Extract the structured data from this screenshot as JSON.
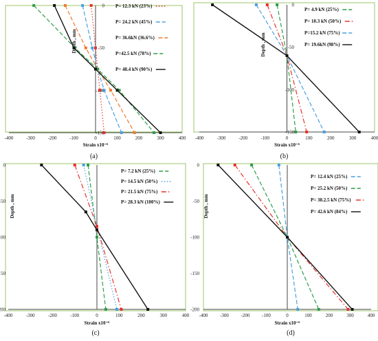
{
  "chart_data": [
    {
      "type": "line",
      "panel": "(a)",
      "xlabel": "Strain x10⁻⁶",
      "ylabel": "Depth , mm",
      "xlim": [
        -400,
        400
      ],
      "ylim": [
        -150,
        0
      ],
      "xticks": [
        -400,
        -300,
        -200,
        -100,
        0,
        100,
        200,
        300,
        400
      ],
      "yticks": [
        -150,
        -100,
        -50,
        0
      ],
      "grid": false,
      "series": [
        {
          "name": "P= 12.3 kN (23%)",
          "color": "#e8322b",
          "dash": "dot",
          "points": [
            [
              -20,
              0
            ],
            [
              0,
              -50
            ],
            [
              10,
              -75
            ],
            [
              20,
              -100
            ],
            [
              40,
              -150
            ]
          ]
        },
        {
          "name": "P= 24.2 kN (45%)",
          "color": "#4a9fe0",
          "dash": "dash",
          "points": [
            [
              -60,
              0
            ],
            [
              -15,
              -50
            ],
            [
              10,
              -75
            ],
            [
              40,
              -100
            ],
            [
              120,
              -150
            ]
          ]
        },
        {
          "name": "P= 36.6kN (36.6%)",
          "color": "#f07a2a",
          "dash": "dash",
          "points": [
            [
              -140,
              0
            ],
            [
              -45,
              -50
            ],
            [
              10,
              -75
            ],
            [
              70,
              -100
            ],
            [
              180,
              -150
            ]
          ]
        },
        {
          "name": "P=42.5 kN (78%)",
          "color": "#2e9e47",
          "dash": "dash",
          "points": [
            [
              -285,
              0
            ],
            [
              -95,
              -50
            ],
            [
              10,
              -75
            ],
            [
              110,
              -100
            ],
            [
              270,
              -150
            ]
          ]
        },
        {
          "name": "P= 48.4 kN (90%)",
          "color": "#111111",
          "dash": "solid",
          "points": [
            [
              -190,
              0
            ],
            [
              -100,
              -50
            ],
            [
              0,
              -75
            ],
            [
              100,
              -100
            ],
            [
              300,
              -150
            ]
          ]
        }
      ]
    },
    {
      "type": "line",
      "panel": "(b)",
      "xlabel": "Strain x10⁻⁶",
      "ylabel": "Depth , mm",
      "xlim": [
        -400,
        400
      ],
      "ylim": [
        -150,
        0
      ],
      "xticks": [
        -400,
        -300,
        -200,
        -100,
        0,
        100,
        200,
        300,
        400
      ],
      "yticks": [
        -150,
        -100,
        -50,
        0
      ],
      "grid": false,
      "series": [
        {
          "name": "P= 4.9 kN (25%)",
          "color": "#2e9e47",
          "dash": "dash",
          "points": [
            [
              -45,
              0
            ],
            [
              0,
              -60
            ],
            [
              40,
              -150
            ]
          ]
        },
        {
          "name": "P= 10.3 kN (50%)",
          "color": "#e8322b",
          "dash": "dashdot",
          "points": [
            [
              -90,
              0
            ],
            [
              0,
              -60
            ],
            [
              90,
              -150
            ]
          ]
        },
        {
          "name": "P=15.2 kN (75%)",
          "color": "#4a9fe0",
          "dash": "dash",
          "points": [
            [
              -140,
              0
            ],
            [
              0,
              -60
            ],
            [
              170,
              -150
            ]
          ]
        },
        {
          "name": "P= 19.6kN (98%)",
          "color": "#111111",
          "dash": "solid",
          "points": [
            [
              -340,
              0
            ],
            [
              0,
              -60
            ],
            [
              330,
              -150
            ]
          ]
        }
      ]
    },
    {
      "type": "line",
      "panel": "(c)",
      "xlabel": "Strain x10⁻⁶",
      "ylabel": "Depth , mm",
      "xlim": [
        -400,
        400
      ],
      "ylim": [
        -200,
        0
      ],
      "xticks": [
        -400,
        -300,
        -200,
        -100,
        0,
        100,
        200,
        300,
        400
      ],
      "yticks": [
        -200,
        -150,
        -100,
        -50,
        0
      ],
      "grid": false,
      "series": [
        {
          "name": "P= 7.2 kN (25%)",
          "color": "#2e9e47",
          "dash": "dash",
          "points": [
            [
              -40,
              0
            ],
            [
              0,
              -100
            ],
            [
              40,
              -200
            ]
          ]
        },
        {
          "name": "P= 14.5 kN (50%)",
          "color": "#4a9fe0",
          "dash": "dot",
          "points": [
            [
              -60,
              0
            ],
            [
              0,
              -85
            ],
            [
              90,
              -200
            ]
          ]
        },
        {
          "name": "P= 21.5 kN (75%)",
          "color": "#e8322b",
          "dash": "dashdot",
          "points": [
            [
              -100,
              0
            ],
            [
              0,
              -85
            ],
            [
              110,
              -200
            ]
          ]
        },
        {
          "name": "P= 28.3 kN (100%)",
          "color": "#111111",
          "dash": "solid",
          "points": [
            [
              -250,
              0
            ],
            [
              -50,
              -65
            ],
            [
              0,
              -90
            ],
            [
              230,
              -200
            ]
          ]
        }
      ]
    },
    {
      "type": "line",
      "panel": "(d)",
      "xlabel": "Strain x10⁻⁶",
      "ylabel": "Depth , mm",
      "xlim": [
        -400,
        400
      ],
      "ylim": [
        -200,
        0
      ],
      "xticks": [
        -400,
        -300,
        -200,
        -100,
        0,
        100,
        200,
        300,
        400
      ],
      "yticks": [
        -200,
        -150,
        -100,
        -50,
        0
      ],
      "grid": false,
      "series": [
        {
          "name": "P= 12.4 kN (25%)",
          "color": "#4a9fe0",
          "dash": "dash",
          "points": [
            [
              -40,
              0
            ],
            [
              0,
              -100
            ],
            [
              50,
              -200
            ]
          ]
        },
        {
          "name": "P= 25.2 kN (50%)",
          "color": "#2e9e47",
          "dash": "dash",
          "points": [
            [
              -170,
              0
            ],
            [
              0,
              -100
            ],
            [
              150,
              -200
            ]
          ]
        },
        {
          "name": "P= 38.2.5 kN (75%)",
          "color": "#e8322b",
          "dash": "dashdot",
          "points": [
            [
              -250,
              0
            ],
            [
              0,
              -100
            ],
            [
              290,
              -200
            ]
          ]
        },
        {
          "name": "P= 42.6 kN (84%)",
          "color": "#111111",
          "dash": "solid",
          "points": [
            [
              -330,
              0
            ],
            [
              0,
              -100
            ],
            [
              310,
              -200
            ]
          ]
        }
      ]
    }
  ]
}
